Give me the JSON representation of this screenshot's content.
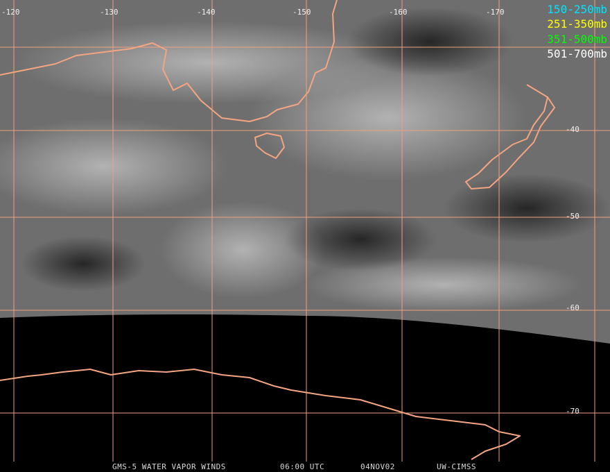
{
  "map": {
    "longitude_labels": [
      "-120",
      "-130",
      "-140",
      "-150",
      "-160",
      "-170"
    ],
    "latitude_labels": [
      "-40",
      "-50",
      "-60",
      "-70"
    ],
    "legend": [
      "150-250mb",
      "251-350mb",
      "351-500mb",
      "501-700mb"
    ],
    "footer": [
      "GMS-5 WATER VAPOR WINDS",
      "06:00 UTC",
      "04NOV02",
      "UW-CIMSS"
    ]
  }
}
